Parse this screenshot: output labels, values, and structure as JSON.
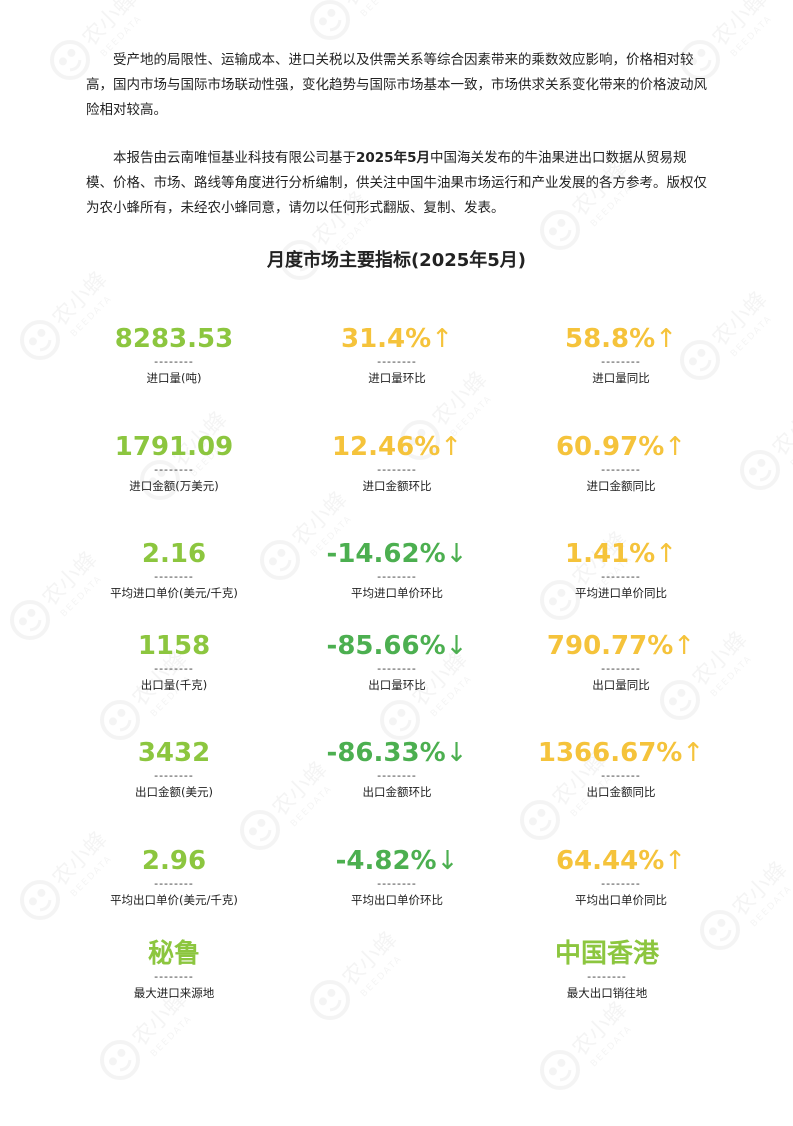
{
  "intro": {
    "p1": "受产地的局限性、运输成本、进口关税以及供需关系等综合因素带来的乘数效应影响，价格相对较高，国内市场与国际市场联动性强，变化趋势与国际市场基本一致，市场供求关系变化带来的价格波动风险相对较高。",
    "p2_a": "本报告由云南唯恒基业科技有限公司基于",
    "p2_b": "2025年5月",
    "p2_c": "中国海关发布的牛油果进出口数据从贸易规模、价格、市场、路线等角度进行分析编制，供关注中国牛油果市场运行和产业发展的各方参考。版权仅为农小蜂所有，未经农小蜂同意，请勿以任何形式翻版、复制、发表。"
  },
  "title": "月度市场主要指标(2025年5月)",
  "dash": "--------",
  "watermark": {
    "cn": "农小蜂",
    "en": "BEEDATA"
  },
  "colors": {
    "green": "#8cc63f",
    "yellow": "#f5c33b",
    "down": "#4caf50"
  },
  "metrics": {
    "r1": [
      {
        "value": "8283.53",
        "arrow": "",
        "label": "进口量(吨)"
      },
      {
        "value": "31.4%",
        "arrow": "↑",
        "label": "进口量环比"
      },
      {
        "value": "58.8%",
        "arrow": "↑",
        "label": "进口量同比"
      }
    ],
    "r2": [
      {
        "value": "1791.09",
        "arrow": "",
        "label": "进口金额(万美元)"
      },
      {
        "value": "12.46%",
        "arrow": "↑",
        "label": "进口金额环比"
      },
      {
        "value": "60.97%",
        "arrow": "↑",
        "label": "进口金额同比"
      }
    ],
    "r3": [
      {
        "value": "2.16",
        "arrow": "",
        "label": "平均进口单价(美元/千克)"
      },
      {
        "value": "-14.62%",
        "arrow": "↓",
        "label": "平均进口单价环比"
      },
      {
        "value": "1.41%",
        "arrow": "↑",
        "label": "平均进口单价同比"
      }
    ],
    "r4": [
      {
        "value": "1158",
        "arrow": "",
        "label": "出口量(千克)"
      },
      {
        "value": "-85.66%",
        "arrow": "↓",
        "label": "出口量环比"
      },
      {
        "value": "790.77%",
        "arrow": "↑",
        "label": "出口量同比"
      }
    ],
    "r5": [
      {
        "value": "3432",
        "arrow": "",
        "label": "出口金额(美元)"
      },
      {
        "value": "-86.33%",
        "arrow": "↓",
        "label": "出口金额环比"
      },
      {
        "value": "1366.67%",
        "arrow": "↑",
        "label": "出口金额同比"
      }
    ],
    "r6": [
      {
        "value": "2.96",
        "arrow": "",
        "label": "平均出口单价(美元/千克)"
      },
      {
        "value": "-4.82%",
        "arrow": "↓",
        "label": "平均出口单价环比"
      },
      {
        "value": "64.44%",
        "arrow": "↑",
        "label": "平均出口单价同比"
      }
    ],
    "r7": [
      {
        "value": "秘鲁",
        "arrow": "",
        "label": "最大进口来源地"
      },
      {
        "value": "中国香港",
        "arrow": "",
        "label": "最大出口销往地"
      }
    ]
  }
}
